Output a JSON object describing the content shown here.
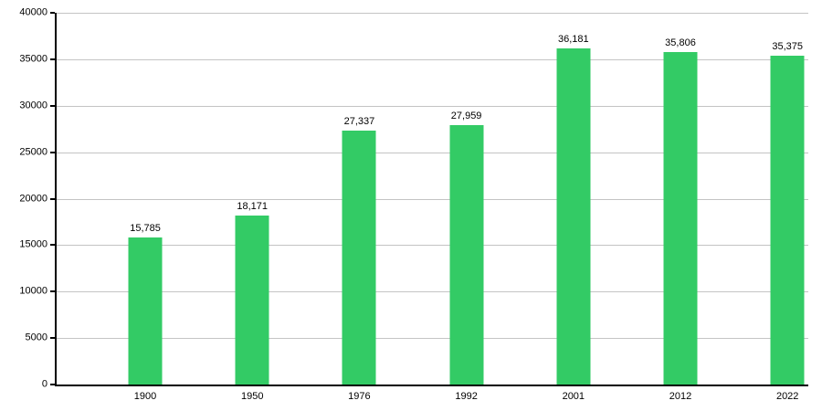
{
  "chart_data": {
    "type": "bar",
    "title": "",
    "xlabel": "",
    "ylabel": "",
    "categories": [
      "1900",
      "1950",
      "1976",
      "1992",
      "2001",
      "2012",
      "2022"
    ],
    "values": [
      15785,
      18171,
      27337,
      27959,
      36181,
      35806,
      35375
    ],
    "value_labels": [
      "15,785",
      "18,171",
      "27,337",
      "27,959",
      "36,181",
      "35,806",
      "35,375"
    ],
    "ylim": [
      0,
      40000
    ],
    "ytick_step": 5000,
    "ytick_labels": [
      "0",
      "5000",
      "10000",
      "15000",
      "20000",
      "25000",
      "30000",
      "35000",
      "40000"
    ],
    "grid": true,
    "legend": false,
    "colors": {
      "bar": "#33cb65",
      "gridline": "#c4c4c4",
      "axis": "#000000",
      "text": "#000000",
      "background": "#ffffff"
    }
  }
}
